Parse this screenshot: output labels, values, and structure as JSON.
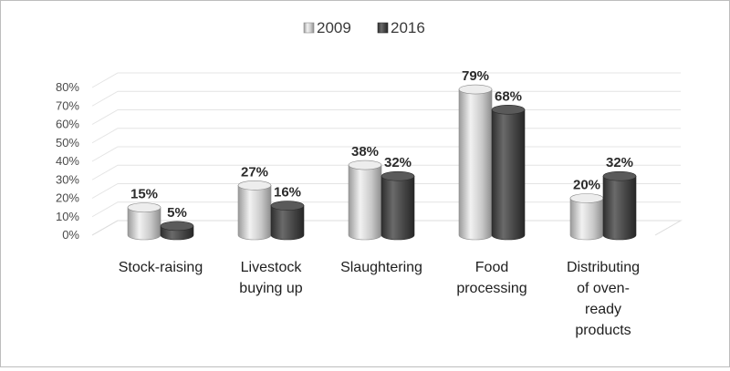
{
  "chart_data": {
    "type": "bar",
    "style": "3d-cylinder",
    "categories": [
      "Stock-raising",
      "Livestock buying up",
      "Slaughtering",
      "Food processing",
      "Distributing of oven-ready products"
    ],
    "category_lines": [
      [
        "Stock-raising"
      ],
      [
        "Livestock",
        "buying up"
      ],
      [
        "Slaughtering"
      ],
      [
        "Food",
        "processing"
      ],
      [
        "Distributing",
        "of oven-",
        "ready",
        "products"
      ]
    ],
    "series": [
      {
        "name": "2009",
        "values": [
          15,
          27,
          38,
          79,
          20
        ],
        "labels": [
          "15%",
          "27%",
          "38%",
          "79%",
          "20%"
        ],
        "color": "#c8c8c8"
      },
      {
        "name": "2016",
        "values": [
          5,
          16,
          32,
          68,
          32
        ],
        "labels": [
          "5%",
          "16%",
          "32%",
          "68%",
          "32%"
        ],
        "color": "#4a4a4a"
      }
    ],
    "yticks": [
      "0%",
      "10%",
      "20%",
      "30%",
      "40%",
      "50%",
      "60%",
      "70%",
      "80%"
    ],
    "ylim": [
      0,
      80
    ],
    "grid": true,
    "legend_position": "top"
  }
}
